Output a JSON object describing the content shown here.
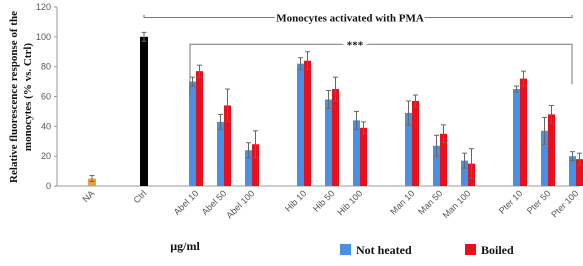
{
  "chart_data": {
    "type": "bar",
    "y_label_lines": [
      "Relative fluorescence response of the",
      "monocytes (% vs. Ctrl)"
    ],
    "x_label": "µg/ml",
    "categories": [
      "NA",
      "Ctrl",
      "Abel 10",
      "Abel 50",
      "Abel 100",
      "Hib 10",
      "Hib 50",
      "Hib 100",
      "Man 10",
      "Man 50",
      "Man 100",
      "Pter 10",
      "Pter 50",
      "Pter 100"
    ],
    "controls": {
      "values": [
        5,
        100,
        null,
        null,
        null,
        null,
        null,
        null,
        null,
        null,
        null,
        null,
        null,
        null
      ],
      "errors": [
        2,
        3,
        null,
        null,
        null,
        null,
        null,
        null,
        null,
        null,
        null,
        null,
        null,
        null
      ],
      "colors": [
        "#e8a33a",
        "#000000"
      ]
    },
    "series": [
      {
        "name": "Not heated",
        "color": "#4a90e2",
        "values": [
          null,
          null,
          70,
          43,
          24,
          82,
          58,
          44,
          49,
          27,
          17,
          65,
          37,
          20
        ],
        "errors": [
          null,
          null,
          3,
          5,
          5,
          4,
          6,
          6,
          8,
          7,
          5,
          2,
          9,
          3
        ]
      },
      {
        "name": "Boiled",
        "color": "#e8101c",
        "values": [
          null,
          null,
          77,
          54,
          28,
          84,
          65,
          39,
          57,
          35,
          15,
          72,
          48,
          18
        ],
        "errors": [
          null,
          null,
          4,
          11,
          9,
          6,
          8,
          4,
          4,
          6,
          10,
          5,
          6,
          4
        ]
      }
    ],
    "annotations": [
      {
        "text": "Monocytes activated with PMA",
        "y": 113
      },
      {
        "text": "***",
        "y": 95
      }
    ],
    "ylim": [
      0,
      120
    ],
    "yticks": [
      0,
      20,
      40,
      60,
      80,
      100,
      120
    ],
    "grid": false
  }
}
